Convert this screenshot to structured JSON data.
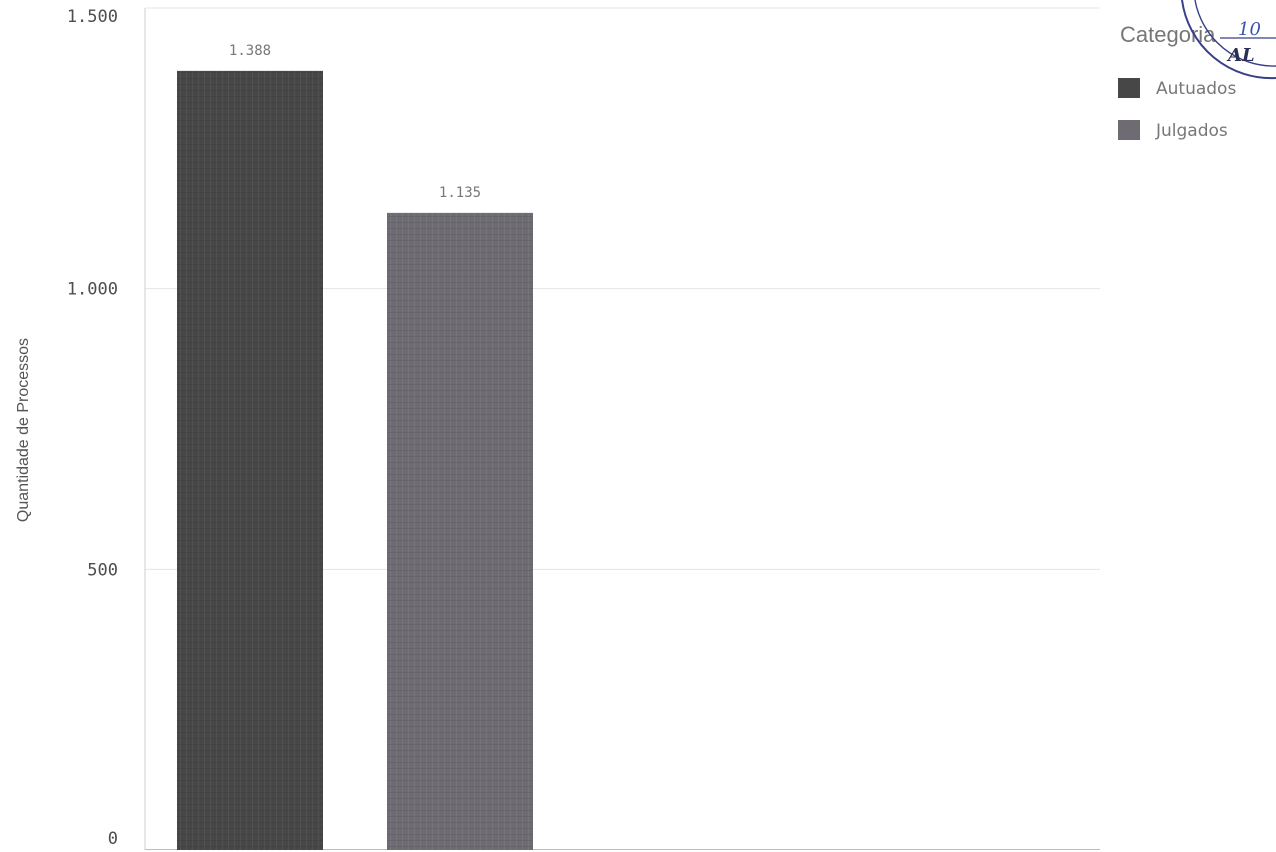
{
  "chart_data": {
    "type": "bar",
    "categories": [
      "Autuados",
      "Julgados"
    ],
    "values": [
      1388,
      1135
    ],
    "data_labels": [
      "1.388",
      "1.135"
    ],
    "ylabel": "Quantidade de Processos",
    "ylim": [
      0,
      1500
    ],
    "yticks": [
      0,
      500,
      1000,
      1500
    ],
    "ytick_labels": [
      "0",
      "500",
      "1.000",
      "1.500"
    ],
    "grid": true,
    "legend": {
      "title": "Categoria",
      "placement": "top-right",
      "items": [
        "Autuados",
        "Julgados"
      ]
    },
    "colors": [
      "#474747",
      "#6e6b73"
    ]
  },
  "stamp": {
    "text": "AL"
  }
}
